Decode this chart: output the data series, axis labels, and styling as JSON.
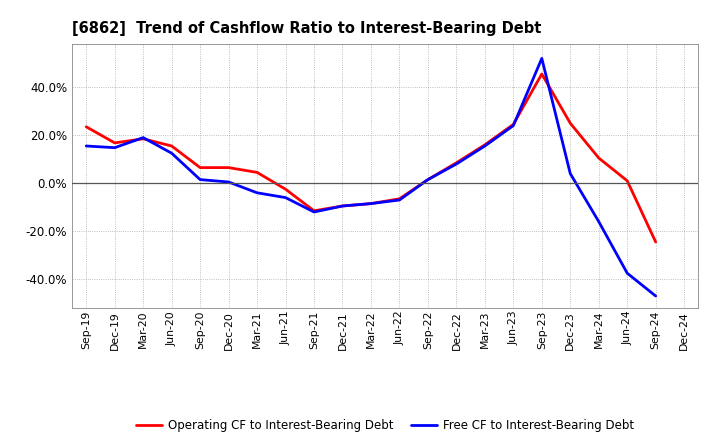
{
  "title": "[6862]  Trend of Cashflow Ratio to Interest-Bearing Debt",
  "x_labels": [
    "Sep-19",
    "Dec-19",
    "Mar-20",
    "Jun-20",
    "Sep-20",
    "Dec-20",
    "Mar-21",
    "Jun-21",
    "Sep-21",
    "Dec-21",
    "Mar-22",
    "Jun-22",
    "Sep-22",
    "Dec-22",
    "Mar-23",
    "Jun-23",
    "Sep-23",
    "Dec-23",
    "Mar-24",
    "Jun-24",
    "Sep-24",
    "Dec-24"
  ],
  "operating_cf": [
    0.235,
    0.168,
    0.185,
    0.155,
    0.065,
    0.065,
    0.045,
    -0.025,
    -0.115,
    -0.095,
    -0.085,
    -0.065,
    0.015,
    0.085,
    0.16,
    0.245,
    0.455,
    0.25,
    0.105,
    0.01,
    -0.245,
    null
  ],
  "free_cf": [
    0.155,
    0.148,
    0.19,
    0.125,
    0.015,
    0.005,
    -0.04,
    -0.06,
    -0.12,
    -0.095,
    -0.085,
    -0.07,
    0.015,
    0.08,
    0.155,
    0.24,
    0.52,
    0.04,
    -0.16,
    -0.375,
    -0.47,
    null
  ],
  "operating_color": "#ff0000",
  "free_color": "#0000ff",
  "background_color": "#ffffff",
  "grid_color": "#aaaaaa",
  "ylim": [
    -0.52,
    0.58
  ],
  "yticks": [
    -0.4,
    -0.2,
    0.0,
    0.2,
    0.4
  ],
  "legend_labels": [
    "Operating CF to Interest-Bearing Debt",
    "Free CF to Interest-Bearing Debt"
  ]
}
